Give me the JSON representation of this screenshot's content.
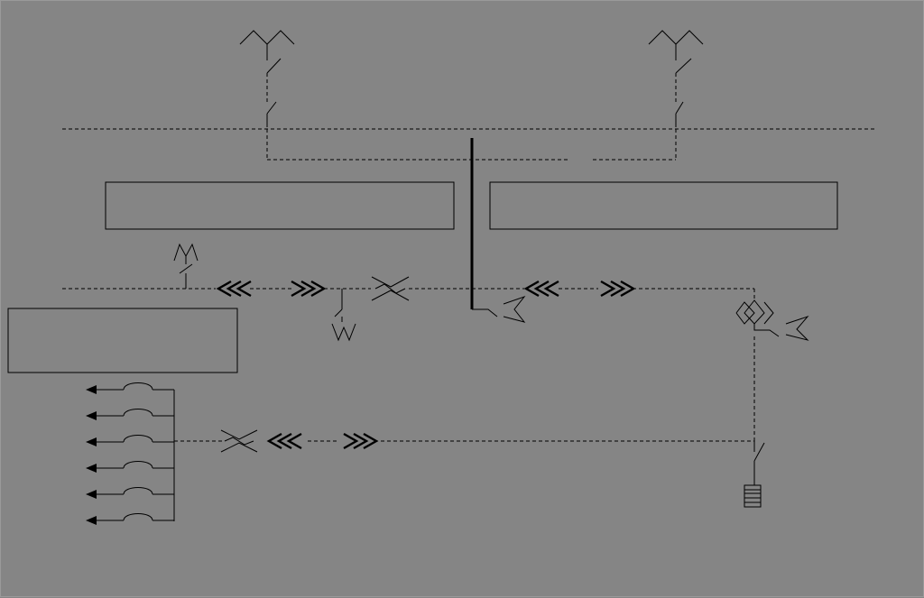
{
  "diagram": {
    "type": "single-line electrical schematic",
    "colors": {
      "background": "#858585",
      "line": "#000000"
    },
    "components": {
      "top_lines": [
        "transformer-symbol",
        "switch-symbol",
        "switch-symbol"
      ],
      "busbars": [
        "upper-busbar",
        "middle-busbar",
        "lower-busbar"
      ],
      "panels": [
        "panel-box",
        "panel-box",
        "panel-box"
      ],
      "couplings": [
        "chevron-open-icon",
        "chevron-close-icon",
        "crossover-icon"
      ],
      "outgoing_feeders": 6
    }
  }
}
